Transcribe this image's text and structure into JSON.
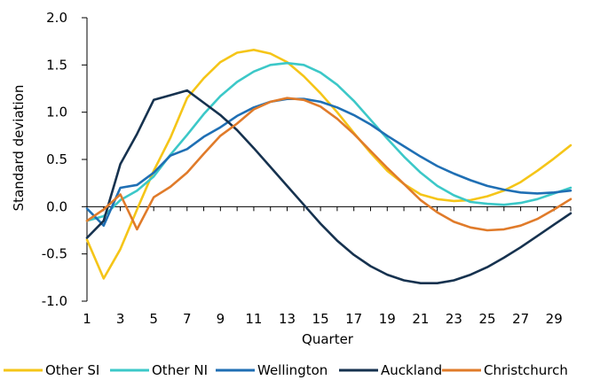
{
  "chart_data": {
    "type": "line",
    "title": "",
    "xlabel": "Quarter",
    "ylabel": "Standard deviation",
    "xlim": [
      1,
      30
    ],
    "ylim": [
      -1.0,
      2.0
    ],
    "x_ticks": [
      1,
      3,
      5,
      7,
      9,
      11,
      13,
      15,
      17,
      19,
      21,
      23,
      25,
      27,
      29
    ],
    "y_ticks": [
      -1.0,
      -0.5,
      0.0,
      0.5,
      1.0,
      1.5,
      2.0
    ],
    "y_tick_labels": [
      "-1.0",
      "-0.5",
      "0.0",
      "0.5",
      "1.0",
      "1.5",
      "2.0"
    ],
    "grid": false,
    "legend_position": "bottom",
    "x": [
      1,
      2,
      3,
      4,
      5,
      6,
      7,
      8,
      9,
      10,
      11,
      12,
      13,
      14,
      15,
      16,
      17,
      18,
      19,
      20,
      21,
      22,
      23,
      24,
      25,
      26,
      27,
      28,
      29,
      30
    ],
    "series": [
      {
        "name": "Other SI",
        "color": "#F5C518",
        "values": [
          -0.35,
          -0.76,
          -0.45,
          -0.03,
          0.38,
          0.73,
          1.15,
          1.36,
          1.53,
          1.63,
          1.66,
          1.62,
          1.53,
          1.38,
          1.2,
          1.0,
          0.78,
          0.57,
          0.38,
          0.24,
          0.13,
          0.08,
          0.06,
          0.07,
          0.11,
          0.17,
          0.26,
          0.38,
          0.51,
          0.65
        ]
      },
      {
        "name": "Other NI",
        "color": "#3CC8C8",
        "values": [
          -0.15,
          -0.1,
          0.07,
          0.17,
          0.32,
          0.55,
          0.76,
          0.98,
          1.17,
          1.32,
          1.43,
          1.5,
          1.52,
          1.5,
          1.42,
          1.29,
          1.12,
          0.92,
          0.72,
          0.53,
          0.36,
          0.22,
          0.12,
          0.05,
          0.03,
          0.02,
          0.04,
          0.08,
          0.14,
          0.2
        ]
      },
      {
        "name": "Wellington",
        "color": "#1F6FB4",
        "values": [
          -0.02,
          -0.2,
          0.2,
          0.23,
          0.36,
          0.54,
          0.61,
          0.74,
          0.84,
          0.96,
          1.05,
          1.11,
          1.14,
          1.14,
          1.11,
          1.05,
          0.97,
          0.87,
          0.75,
          0.64,
          0.53,
          0.43,
          0.35,
          0.28,
          0.22,
          0.18,
          0.15,
          0.14,
          0.15,
          0.17
        ]
      },
      {
        "name": "Auckland",
        "color": "#16324F",
        "values": [
          -0.33,
          -0.15,
          0.45,
          0.77,
          1.13,
          1.18,
          1.23,
          1.1,
          0.97,
          0.81,
          0.62,
          0.42,
          0.22,
          0.02,
          -0.18,
          -0.36,
          -0.51,
          -0.63,
          -0.72,
          -0.78,
          -0.81,
          -0.81,
          -0.78,
          -0.72,
          -0.64,
          -0.54,
          -0.43,
          -0.31,
          -0.19,
          -0.07
        ]
      },
      {
        "name": "Christchurch",
        "color": "#E07B2A",
        "values": [
          -0.15,
          -0.03,
          0.13,
          -0.24,
          0.1,
          0.21,
          0.36,
          0.56,
          0.75,
          0.88,
          1.03,
          1.11,
          1.15,
          1.13,
          1.06,
          0.93,
          0.77,
          0.59,
          0.41,
          0.24,
          0.07,
          -0.06,
          -0.16,
          -0.22,
          -0.25,
          -0.24,
          -0.2,
          -0.13,
          -0.03,
          0.08
        ]
      }
    ]
  }
}
